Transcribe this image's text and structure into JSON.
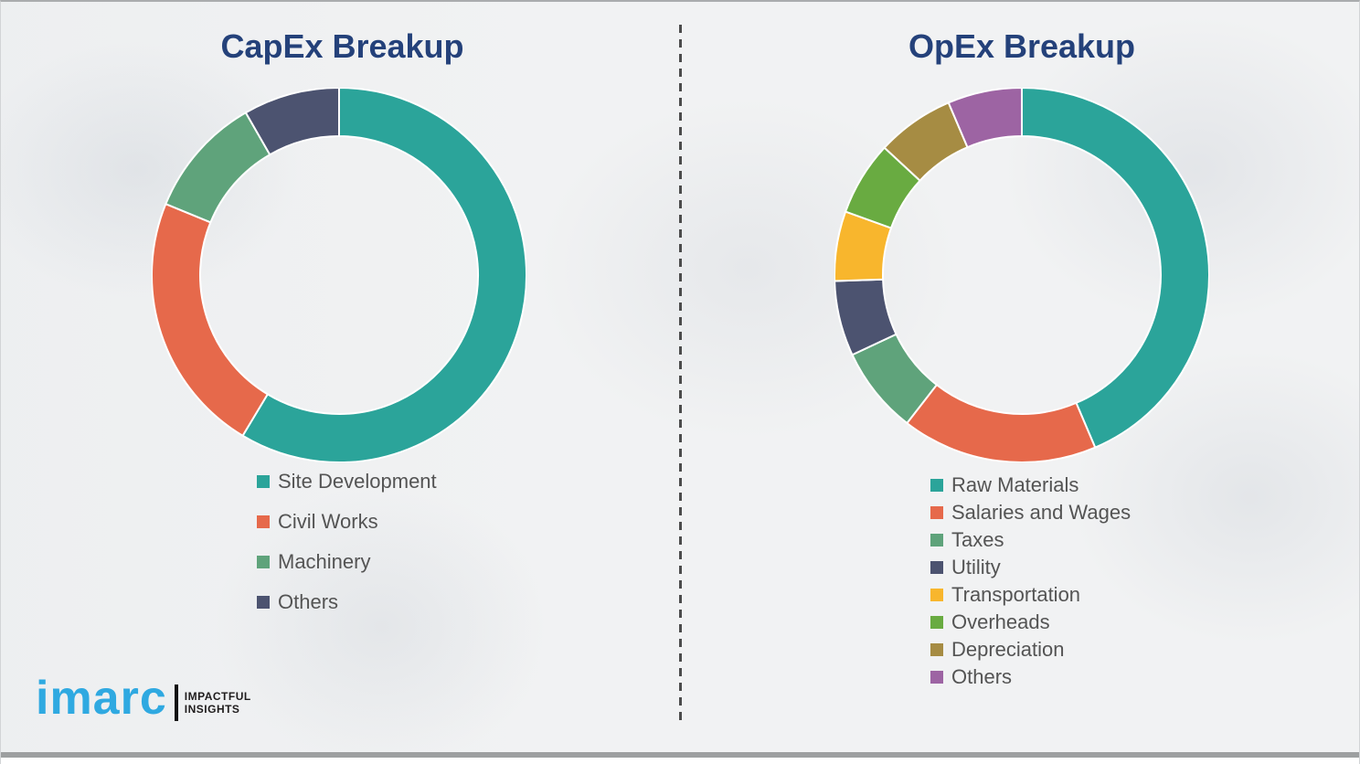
{
  "theme": {
    "title_color": "#24417A",
    "legend_text_color": "#545454",
    "brand_blue": "#2FA9E1",
    "divider_color": "#4C4C4C",
    "background_color": "#F1F2F3"
  },
  "brand": {
    "logo_text": "imarc",
    "tagline_line1": "IMPACTFUL",
    "tagline_line2": "INSIGHTS"
  },
  "chart_data": [
    {
      "type": "pie",
      "subtype": "donut",
      "title": "CapEx Breakup",
      "start_angle_deg": 0,
      "direction": "clockwise",
      "legend_position": "bottom-left",
      "units": "percent (estimated from arc angles)",
      "segments": [
        {
          "label": "Site Development",
          "value": 58.6,
          "color": "#2BA49A"
        },
        {
          "label": "Civil Works",
          "value": 22.6,
          "color": "#E6694B"
        },
        {
          "label": "Machinery",
          "value": 10.5,
          "color": "#5FA37B"
        },
        {
          "label": "Others",
          "value": 8.3,
          "color": "#4C5370"
        }
      ]
    },
    {
      "type": "pie",
      "subtype": "donut",
      "title": "OpEx Breakup",
      "start_angle_deg": 0,
      "direction": "clockwise",
      "legend_position": "bottom-left",
      "units": "percent (estimated from arc angles)",
      "segments": [
        {
          "label": "Raw Materials",
          "value": 43.6,
          "color": "#2BA49A"
        },
        {
          "label": "Salaries and Wages",
          "value": 16.9,
          "color": "#E6694B"
        },
        {
          "label": "Taxes",
          "value": 7.5,
          "color": "#5FA37B"
        },
        {
          "label": "Utility",
          "value": 6.5,
          "color": "#4C5370"
        },
        {
          "label": "Transportation",
          "value": 6.0,
          "color": "#F8B62D"
        },
        {
          "label": "Overheads",
          "value": 6.4,
          "color": "#69AB41"
        },
        {
          "label": "Depreciation",
          "value": 6.7,
          "color": "#A68C43"
        },
        {
          "label": "Others",
          "value": 6.4,
          "color": "#9D64A3"
        }
      ]
    }
  ]
}
